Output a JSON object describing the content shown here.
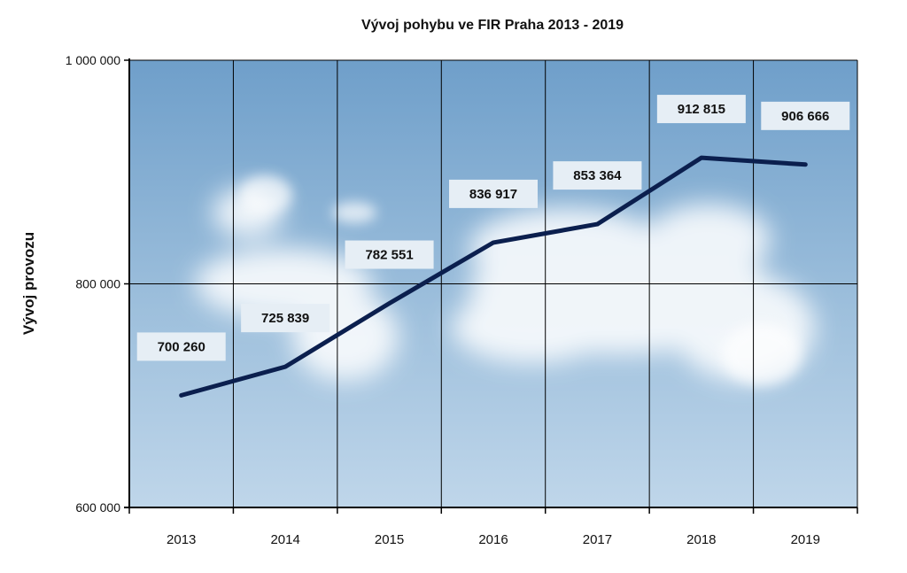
{
  "colors": {
    "line": "#0b1f4e",
    "sky_top": "#6f9fca",
    "sky_bottom": "#bfd6ea",
    "label_box": "#e6eef5",
    "grid": "#000000"
  },
  "chart_data": {
    "type": "line",
    "title": "Vývoj pohybu ve FIR Praha  2013 - 2019",
    "xlabel": "",
    "ylabel": "Vývoj provozu",
    "categories": [
      "2013",
      "2014",
      "2015",
      "2016",
      "2017",
      "2018",
      "2019"
    ],
    "ylim": [
      600000,
      1000000
    ],
    "yticks": [
      {
        "value": 1000000,
        "label": "1 000 000"
      },
      {
        "value": 800000,
        "label": "800 000"
      },
      {
        "value": 600000,
        "label": "600 000"
      }
    ],
    "grid": true,
    "background": "sky-with-clouds",
    "series": [
      {
        "values": [
          700260,
          725839,
          782551,
          836917,
          853364,
          912815,
          906666
        ],
        "labels": [
          "700 260",
          "725 839",
          "782 551",
          "836 917",
          "853 364",
          "912 815",
          "906 666"
        ]
      }
    ]
  }
}
